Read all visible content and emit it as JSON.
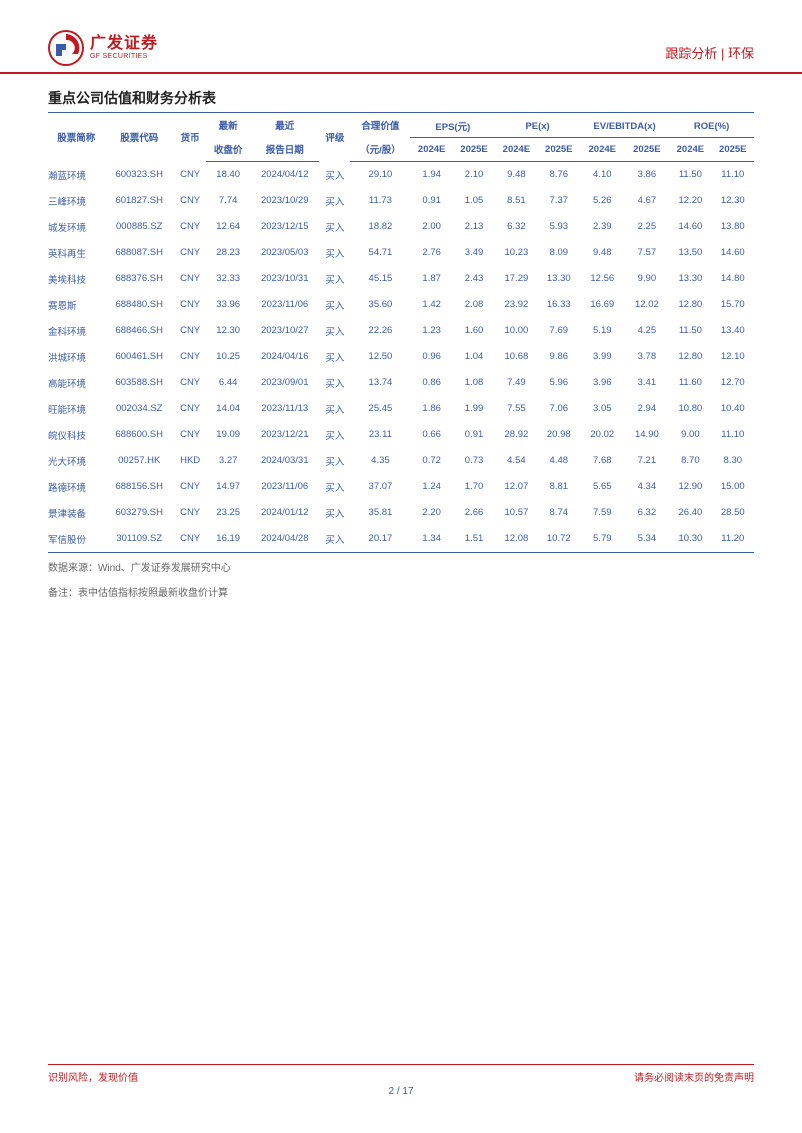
{
  "header": {
    "logo_cn": "广发证券",
    "logo_en": "GF SECURITIES",
    "right": "跟踪分析 | 环保"
  },
  "table": {
    "title": "重点公司估值和财务分析表",
    "headers_r1": {
      "name": "股票简称",
      "code": "股票代码",
      "currency": "货币",
      "latest": "最新",
      "recent": "最近",
      "rating": "评级",
      "fair": "合理价值",
      "eps": "EPS(元)",
      "pe": "PE(x)",
      "ev": "EV/EBITDA(x)",
      "roe": "ROE(%)"
    },
    "headers_r2": {
      "close": "收盘价",
      "report_date": "报告日期",
      "fair_unit": "（元/股）",
      "y1": "2024E",
      "y2": "2025E"
    },
    "rows": [
      {
        "name": "瀚蓝环境",
        "code": "600323.SH",
        "cur": "CNY",
        "close": "18.40",
        "date": "2024/04/12",
        "rating": "买入",
        "fair": "29.10",
        "eps1": "1.94",
        "eps2": "2.10",
        "pe1": "9.48",
        "pe2": "8.76",
        "ev1": "4.10",
        "ev2": "3.86",
        "roe1": "11.50",
        "roe2": "11.10"
      },
      {
        "name": "三峰环境",
        "code": "601827.SH",
        "cur": "CNY",
        "close": "7.74",
        "date": "2023/10/29",
        "rating": "买入",
        "fair": "11.73",
        "eps1": "0.91",
        "eps2": "1.05",
        "pe1": "8.51",
        "pe2": "7.37",
        "ev1": "5.26",
        "ev2": "4.67",
        "roe1": "12.20",
        "roe2": "12.30"
      },
      {
        "name": "城发环境",
        "code": "000885.SZ",
        "cur": "CNY",
        "close": "12.64",
        "date": "2023/12/15",
        "rating": "买入",
        "fair": "18.82",
        "eps1": "2.00",
        "eps2": "2.13",
        "pe1": "6.32",
        "pe2": "5.93",
        "ev1": "2.39",
        "ev2": "2.25",
        "roe1": "14.60",
        "roe2": "13.80"
      },
      {
        "name": "英科再生",
        "code": "688087.SH",
        "cur": "CNY",
        "close": "28.23",
        "date": "2023/05/03",
        "rating": "买入",
        "fair": "54.71",
        "eps1": "2.76",
        "eps2": "3.49",
        "pe1": "10.23",
        "pe2": "8.09",
        "ev1": "9.48",
        "ev2": "7.57",
        "roe1": "13.50",
        "roe2": "14.60"
      },
      {
        "name": "美埃科技",
        "code": "688376.SH",
        "cur": "CNY",
        "close": "32.33",
        "date": "2023/10/31",
        "rating": "买入",
        "fair": "45.15",
        "eps1": "1.87",
        "eps2": "2.43",
        "pe1": "17.29",
        "pe2": "13.30",
        "ev1": "12.56",
        "ev2": "9.90",
        "roe1": "13.30",
        "roe2": "14.80"
      },
      {
        "name": "赛恩斯",
        "code": "688480.SH",
        "cur": "CNY",
        "close": "33.96",
        "date": "2023/11/06",
        "rating": "买入",
        "fair": "35.60",
        "eps1": "1.42",
        "eps2": "2.08",
        "pe1": "23.92",
        "pe2": "16.33",
        "ev1": "16.69",
        "ev2": "12.02",
        "roe1": "12.80",
        "roe2": "15.70"
      },
      {
        "name": "金科环境",
        "code": "688466.SH",
        "cur": "CNY",
        "close": "12.30",
        "date": "2023/10/27",
        "rating": "买入",
        "fair": "22.26",
        "eps1": "1.23",
        "eps2": "1.60",
        "pe1": "10.00",
        "pe2": "7.69",
        "ev1": "5.19",
        "ev2": "4.25",
        "roe1": "11.50",
        "roe2": "13.40"
      },
      {
        "name": "洪城环境",
        "code": "600461.SH",
        "cur": "CNY",
        "close": "10.25",
        "date": "2024/04/16",
        "rating": "买入",
        "fair": "12.50",
        "eps1": "0.96",
        "eps2": "1.04",
        "pe1": "10.68",
        "pe2": "9.86",
        "ev1": "3.99",
        "ev2": "3.78",
        "roe1": "12.80",
        "roe2": "12.10"
      },
      {
        "name": "高能环境",
        "code": "603588.SH",
        "cur": "CNY",
        "close": "6.44",
        "date": "2023/09/01",
        "rating": "买入",
        "fair": "13.74",
        "eps1": "0.86",
        "eps2": "1.08",
        "pe1": "7.49",
        "pe2": "5.96",
        "ev1": "3.96",
        "ev2": "3.41",
        "roe1": "11.60",
        "roe2": "12.70"
      },
      {
        "name": "旺能环境",
        "code": "002034.SZ",
        "cur": "CNY",
        "close": "14.04",
        "date": "2023/11/13",
        "rating": "买入",
        "fair": "25.45",
        "eps1": "1.86",
        "eps2": "1.99",
        "pe1": "7.55",
        "pe2": "7.06",
        "ev1": "3.05",
        "ev2": "2.94",
        "roe1": "10.80",
        "roe2": "10.40"
      },
      {
        "name": "皖仪科技",
        "code": "688600.SH",
        "cur": "CNY",
        "close": "19.09",
        "date": "2023/12/21",
        "rating": "买入",
        "fair": "23.11",
        "eps1": "0.66",
        "eps2": "0.91",
        "pe1": "28.92",
        "pe2": "20.98",
        "ev1": "20.02",
        "ev2": "14.90",
        "roe1": "9.00",
        "roe2": "11.10"
      },
      {
        "name": "光大环境",
        "code": "00257.HK",
        "cur": "HKD",
        "close": "3.27",
        "date": "2024/03/31",
        "rating": "买入",
        "fair": "4.35",
        "eps1": "0.72",
        "eps2": "0.73",
        "pe1": "4.54",
        "pe2": "4.48",
        "ev1": "7.68",
        "ev2": "7.21",
        "roe1": "8.70",
        "roe2": "8.30"
      },
      {
        "name": "路德环境",
        "code": "688156.SH",
        "cur": "CNY",
        "close": "14.97",
        "date": "2023/11/06",
        "rating": "买入",
        "fair": "37.07",
        "eps1": "1.24",
        "eps2": "1.70",
        "pe1": "12.07",
        "pe2": "8.81",
        "ev1": "5.65",
        "ev2": "4.34",
        "roe1": "12.90",
        "roe2": "15.00"
      },
      {
        "name": "景津装备",
        "code": "603279.SH",
        "cur": "CNY",
        "close": "23.25",
        "date": "2024/01/12",
        "rating": "买入",
        "fair": "35.81",
        "eps1": "2.20",
        "eps2": "2.66",
        "pe1": "10.57",
        "pe2": "8.74",
        "ev1": "7.59",
        "ev2": "6.32",
        "roe1": "26.40",
        "roe2": "28.50"
      },
      {
        "name": "军信股份",
        "code": "301109.SZ",
        "cur": "CNY",
        "close": "16.19",
        "date": "2024/04/28",
        "rating": "买入",
        "fair": "20.17",
        "eps1": "1.34",
        "eps2": "1.51",
        "pe1": "12.08",
        "pe2": "10.72",
        "ev1": "5.79",
        "ev2": "5.34",
        "roe1": "10.30",
        "roe2": "11.20"
      }
    ],
    "source": "数据来源：Wind、广发证券发展研究中心",
    "note": "备注：表中估值指标按照最新收盘价计算"
  },
  "footer": {
    "left": "识别风险，发现价值",
    "right": "请务必阅读末页的免责声明",
    "page_cur": "2",
    "page_sep": "/",
    "page_total": "17"
  },
  "colors": {
    "red": "#c01a20",
    "blue": "#3a5ca8"
  }
}
